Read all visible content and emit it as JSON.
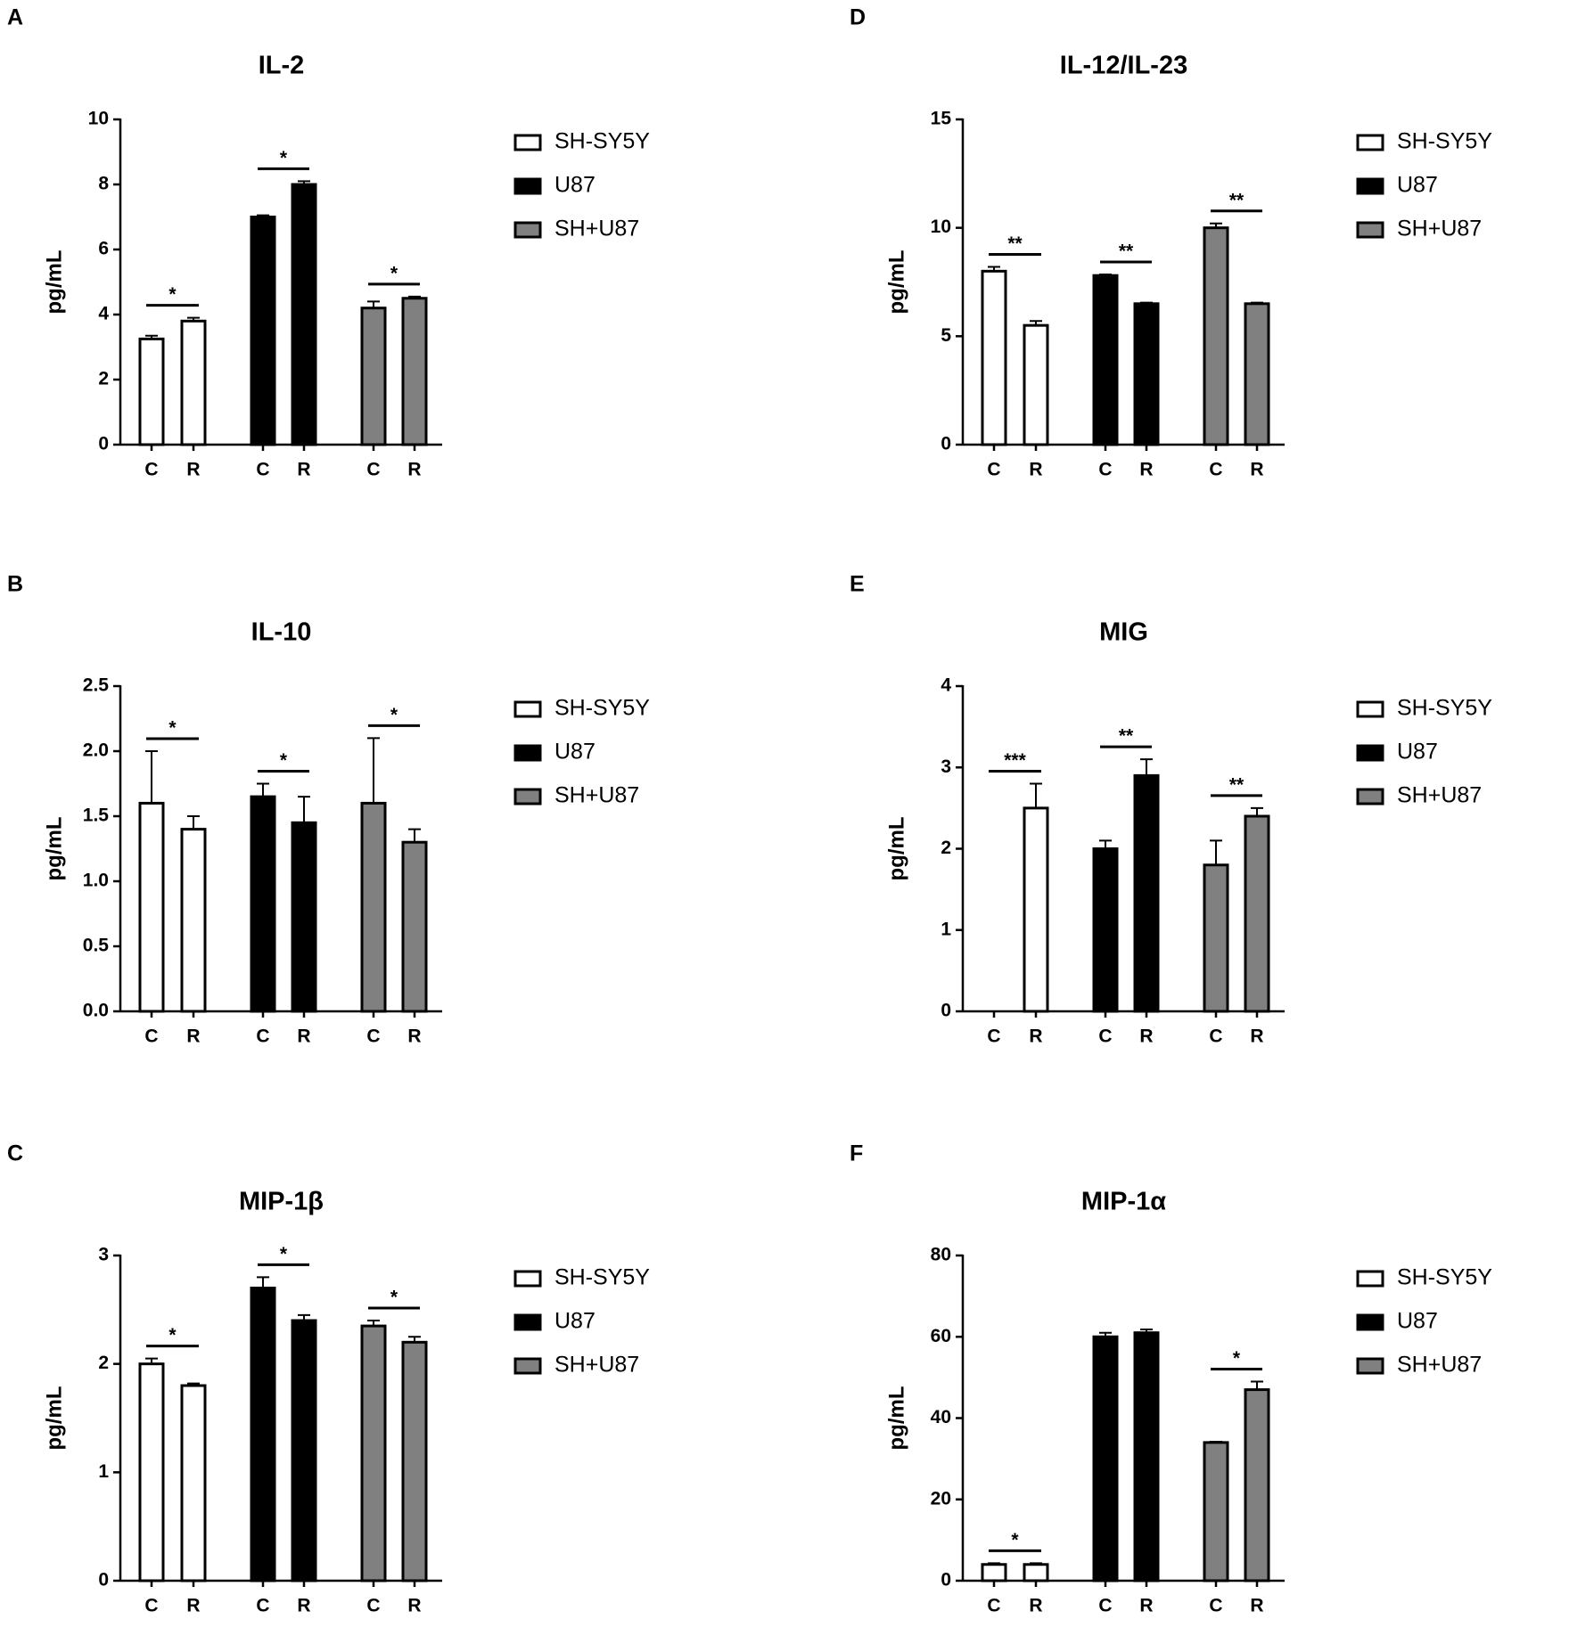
{
  "chart_data": [
    {
      "type": "bar",
      "panel": "A",
      "title": "IL-2",
      "ylabel": "pg/mL",
      "categories": [
        "C",
        "R"
      ],
      "ylim": [
        0,
        10
      ],
      "yticks": [
        0,
        2,
        4,
        6,
        8,
        10
      ],
      "series": [
        {
          "name": "SH-SY5Y",
          "color": "#ffffff",
          "values": [
            3.25,
            3.8
          ],
          "errors": [
            0.1,
            0.1
          ]
        },
        {
          "name": "U87",
          "color": "#000000",
          "values": [
            7.0,
            8.0
          ],
          "errors": [
            0.05,
            0.1
          ]
        },
        {
          "name": "SH+U87",
          "color": "#808080",
          "values": [
            4.2,
            4.5
          ],
          "errors": [
            0.2,
            0.05
          ]
        }
      ],
      "significance": [
        "*",
        "*",
        "*"
      ]
    },
    {
      "type": "bar",
      "panel": "D",
      "title": "IL-12/IL-23",
      "ylabel": "pg/mL",
      "categories": [
        "C",
        "R"
      ],
      "ylim": [
        0,
        15
      ],
      "yticks": [
        0,
        5,
        10,
        15
      ],
      "series": [
        {
          "name": "SH-SY5Y",
          "color": "#ffffff",
          "values": [
            8.0,
            5.5
          ],
          "errors": [
            0.2,
            0.2
          ]
        },
        {
          "name": "U87",
          "color": "#000000",
          "values": [
            7.8,
            6.5
          ],
          "errors": [
            0.05,
            0.05
          ]
        },
        {
          "name": "SH+U87",
          "color": "#808080",
          "values": [
            10.0,
            6.5
          ],
          "errors": [
            0.2,
            0.05
          ]
        }
      ],
      "significance": [
        "**",
        "**",
        "**"
      ]
    },
    {
      "type": "bar",
      "panel": "B",
      "title": "IL-10",
      "ylabel": "pg/mL",
      "categories": [
        "C",
        "R"
      ],
      "ylim": [
        0,
        2.5
      ],
      "yticks": [
        {
          "value": 0,
          "label": "0.0"
        },
        0.5,
        {
          "value": 1,
          "label": "1.0"
        },
        1.5,
        {
          "value": 2,
          "label": "2.0"
        },
        2.5
      ],
      "series": [
        {
          "name": "SH-SY5Y",
          "color": "#ffffff",
          "values": [
            1.6,
            1.4
          ],
          "errors": [
            0.4,
            0.1
          ]
        },
        {
          "name": "U87",
          "color": "#000000",
          "values": [
            1.65,
            1.45
          ],
          "errors": [
            0.1,
            0.2
          ]
        },
        {
          "name": "SH+U87",
          "color": "#808080",
          "values": [
            1.6,
            1.3
          ],
          "errors": [
            0.5,
            0.1
          ]
        }
      ],
      "significance": [
        "*",
        "*",
        "*"
      ]
    },
    {
      "type": "bar",
      "panel": "E",
      "title": "MIG",
      "ylabel": "pg/mL",
      "categories": [
        "C",
        "R"
      ],
      "ylim": [
        0,
        4
      ],
      "yticks": [
        0,
        1,
        2,
        3,
        4
      ],
      "series": [
        {
          "name": "SH-SY5Y",
          "color": "#ffffff",
          "values": [
            0,
            2.5
          ],
          "errors": [
            0,
            0.3
          ]
        },
        {
          "name": "U87",
          "color": "#000000",
          "values": [
            2.0,
            2.9
          ],
          "errors": [
            0.1,
            0.2
          ]
        },
        {
          "name": "SH+U87",
          "color": "#808080",
          "values": [
            1.8,
            2.4
          ],
          "errors": [
            0.3,
            0.1
          ]
        }
      ],
      "significance": [
        "***",
        "**",
        "**"
      ]
    },
    {
      "type": "bar",
      "panel": "C",
      "title": "MIP-1β",
      "ylabel": "pg/mL",
      "categories": [
        "C",
        "R"
      ],
      "ylim": [
        0,
        3
      ],
      "yticks": [
        0,
        1,
        2,
        3
      ],
      "series": [
        {
          "name": "SH-SY5Y",
          "color": "#ffffff",
          "values": [
            2.0,
            1.8
          ],
          "errors": [
            0.05,
            0.02
          ]
        },
        {
          "name": "U87",
          "color": "#000000",
          "values": [
            2.7,
            2.4
          ],
          "errors": [
            0.1,
            0.05
          ]
        },
        {
          "name": "SH+U87",
          "color": "#808080",
          "values": [
            2.35,
            2.2
          ],
          "errors": [
            0.05,
            0.05
          ]
        }
      ],
      "significance": [
        "*",
        "*",
        "*"
      ]
    },
    {
      "type": "bar",
      "panel": "F",
      "title": "MIP-1α",
      "ylabel": "pg/mL",
      "categories": [
        "C",
        "R"
      ],
      "ylim": [
        0,
        80
      ],
      "yticks": [
        0,
        20,
        40,
        60,
        80
      ],
      "series": [
        {
          "name": "SH-SY5Y",
          "color": "#ffffff",
          "values": [
            4,
            4
          ],
          "errors": [
            0.3,
            0.3
          ]
        },
        {
          "name": "U87",
          "color": "#000000",
          "values": [
            60,
            61
          ],
          "errors": [
            1,
            0.8
          ]
        },
        {
          "name": "SH+U87",
          "color": "#808080",
          "values": [
            34,
            47
          ],
          "errors": [
            0.2,
            2
          ]
        }
      ],
      "significance": [
        "*",
        null,
        "*"
      ]
    }
  ]
}
